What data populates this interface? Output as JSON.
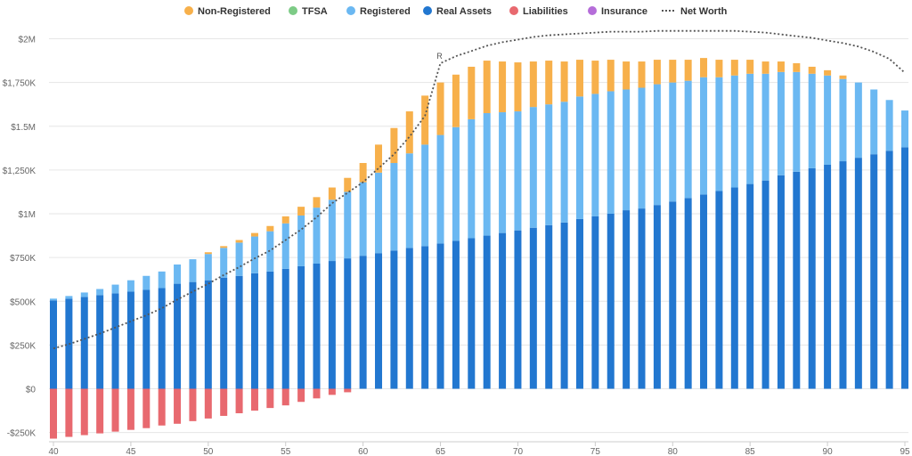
{
  "chart_data": {
    "type": "bar",
    "stacked": true,
    "x_start": 40,
    "x_end": 95,
    "x_ticks": [
      40,
      45,
      50,
      55,
      60,
      65,
      70,
      75,
      80,
      85,
      90,
      95
    ],
    "ylim": [
      -250000,
      2000000
    ],
    "y_ticks": [
      -250000,
      0,
      250000,
      500000,
      750000,
      1000000,
      1250000,
      1500000,
      1750000,
      2000000
    ],
    "y_tick_labels": [
      "-$250K",
      "$0",
      "$250K",
      "$500K",
      "$750K",
      "$1M",
      "$1,250K",
      "$1.5M",
      "$1,750K",
      "$2M"
    ],
    "grid": true,
    "legend_position": "top",
    "annotation": {
      "x": 65,
      "label": "R"
    },
    "series": [
      {
        "name": "Non-Registered",
        "kind": "bar",
        "color": "#F7B04B",
        "values": [
          0,
          0,
          0,
          0,
          0,
          0,
          0,
          0,
          0,
          0,
          10000,
          10000,
          15000,
          20000,
          30000,
          40000,
          50000,
          60000,
          70000,
          80000,
          110000,
          160000,
          200000,
          240000,
          280000,
          300000,
          300000,
          300000,
          300000,
          290000,
          280000,
          260000,
          250000,
          230000,
          210000,
          190000,
          180000,
          160000,
          150000,
          140000,
          130000,
          120000,
          110000,
          100000,
          90000,
          80000,
          70000,
          60000,
          50000,
          40000,
          30000,
          20000,
          0,
          0,
          0,
          0
        ]
      },
      {
        "name": "TFSA",
        "kind": "bar",
        "color": "#7DCB86",
        "values": [
          0,
          0,
          0,
          0,
          0,
          0,
          0,
          0,
          0,
          0,
          0,
          0,
          0,
          0,
          0,
          0,
          0,
          0,
          0,
          0,
          0,
          0,
          0,
          0,
          0,
          0,
          0,
          0,
          0,
          0,
          0,
          0,
          0,
          0,
          0,
          0,
          0,
          0,
          0,
          0,
          0,
          0,
          0,
          0,
          0,
          0,
          0,
          0,
          0,
          0,
          0,
          0,
          0,
          0,
          0,
          0
        ]
      },
      {
        "name": "Registered",
        "kind": "bar",
        "color": "#6BB8F2",
        "values": [
          10000,
          15000,
          25000,
          35000,
          50000,
          65000,
          80000,
          95000,
          110000,
          130000,
          150000,
          170000,
          190000,
          210000,
          230000,
          260000,
          290000,
          320000,
          350000,
          380000,
          420000,
          460000,
          500000,
          540000,
          580000,
          620000,
          650000,
          680000,
          700000,
          690000,
          680000,
          690000,
          690000,
          690000,
          700000,
          700000,
          700000,
          690000,
          690000,
          690000,
          680000,
          670000,
          670000,
          650000,
          640000,
          630000,
          610000,
          590000,
          570000,
          540000,
          510000,
          470000,
          430000,
          370000,
          290000,
          210000
        ]
      },
      {
        "name": "Real Assets",
        "kind": "bar",
        "color": "#2277D0",
        "values": [
          505000,
          515000,
          525000,
          535000,
          545000,
          555000,
          565000,
          575000,
          600000,
          610000,
          620000,
          635000,
          645000,
          660000,
          670000,
          685000,
          700000,
          715000,
          730000,
          745000,
          760000,
          775000,
          790000,
          805000,
          815000,
          830000,
          845000,
          860000,
          875000,
          890000,
          905000,
          920000,
          935000,
          950000,
          970000,
          985000,
          1000000,
          1020000,
          1030000,
          1050000,
          1070000,
          1090000,
          1110000,
          1130000,
          1150000,
          1170000,
          1190000,
          1220000,
          1240000,
          1260000,
          1280000,
          1300000,
          1320000,
          1340000,
          1360000,
          1380000
        ]
      },
      {
        "name": "Liabilities",
        "kind": "bar",
        "color": "#E8696F",
        "values": [
          -285000,
          -275000,
          -265000,
          -255000,
          -245000,
          -235000,
          -225000,
          -210000,
          -200000,
          -185000,
          -170000,
          -155000,
          -140000,
          -125000,
          -110000,
          -95000,
          -75000,
          -55000,
          -35000,
          -20000,
          0,
          0,
          0,
          0,
          0,
          0,
          0,
          0,
          0,
          0,
          0,
          0,
          0,
          0,
          0,
          0,
          0,
          0,
          0,
          0,
          0,
          0,
          0,
          0,
          0,
          0,
          0,
          0,
          0,
          0,
          0,
          0,
          0,
          0,
          0,
          0
        ]
      },
      {
        "name": "Insurance",
        "kind": "bar",
        "color": "#B56DD9",
        "values": [
          0,
          0,
          0,
          0,
          0,
          0,
          0,
          0,
          0,
          0,
          0,
          0,
          0,
          0,
          0,
          0,
          0,
          0,
          0,
          0,
          0,
          0,
          0,
          0,
          0,
          0,
          0,
          0,
          0,
          0,
          0,
          0,
          0,
          0,
          0,
          0,
          0,
          0,
          0,
          0,
          0,
          0,
          0,
          0,
          0,
          0,
          0,
          0,
          0,
          0,
          0,
          0,
          0,
          0,
          0,
          0
        ]
      },
      {
        "name": "Net Worth",
        "kind": "line",
        "color": "#555555",
        "values": [
          230000,
          255000,
          285000,
          315000,
          350000,
          385000,
          420000,
          460000,
          510000,
          555000,
          600000,
          650000,
          695000,
          745000,
          790000,
          850000,
          910000,
          980000,
          1060000,
          1120000,
          1180000,
          1260000,
          1340000,
          1440000,
          1560000,
          1860000,
          1900000,
          1930000,
          1960000,
          1980000,
          1995000,
          2010000,
          2020000,
          2025000,
          2030000,
          2035000,
          2040000,
          2040000,
          2040000,
          2045000,
          2045000,
          2045000,
          2045000,
          2045000,
          2045000,
          2040000,
          2035000,
          2025000,
          2015000,
          2005000,
          1990000,
          1975000,
          1955000,
          1925000,
          1885000,
          1805000
        ]
      }
    ]
  }
}
